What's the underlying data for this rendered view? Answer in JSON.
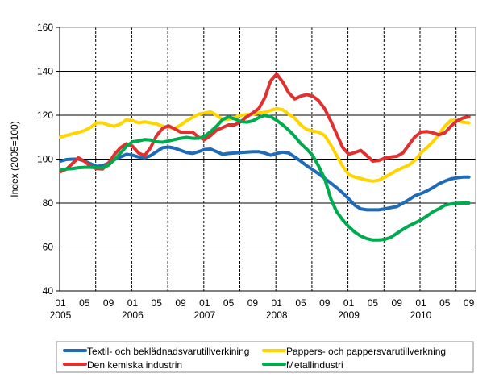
{
  "chart_data": {
    "type": "line",
    "title": "",
    "xlabel": "",
    "ylabel": "Index (2005=100)",
    "ylim": [
      40,
      160
    ],
    "yticks": [
      40,
      60,
      80,
      100,
      120,
      140,
      160
    ],
    "x_start": "2005-01",
    "x_end": "2010-09",
    "xtick_labels": [
      {
        "month": "01",
        "year": "2005",
        "date": "2005-01"
      },
      {
        "month": "05",
        "year": "",
        "date": "2005-05"
      },
      {
        "month": "09",
        "year": "",
        "date": "2005-09"
      },
      {
        "month": "01",
        "year": "2006",
        "date": "2006-01"
      },
      {
        "month": "05",
        "year": "",
        "date": "2006-05"
      },
      {
        "month": "09",
        "year": "",
        "date": "2006-09"
      },
      {
        "month": "01",
        "year": "2007",
        "date": "2007-01"
      },
      {
        "month": "05",
        "year": "",
        "date": "2007-05"
      },
      {
        "month": "09",
        "year": "",
        "date": "2007-09"
      },
      {
        "month": "01",
        "year": "2008",
        "date": "2008-01"
      },
      {
        "month": "05",
        "year": "",
        "date": "2008-05"
      },
      {
        "month": "09",
        "year": "",
        "date": "2008-09"
      },
      {
        "month": "01",
        "year": "2009",
        "date": "2009-01"
      },
      {
        "month": "05",
        "year": "",
        "date": "2009-05"
      },
      {
        "month": "09",
        "year": "",
        "date": "2009-09"
      },
      {
        "month": "01",
        "year": "2010",
        "date": "2010-01"
      },
      {
        "month": "05",
        "year": "",
        "date": "2010-05"
      },
      {
        "month": "09",
        "year": "",
        "date": "2010-09"
      }
    ],
    "grid": {
      "horizontal": "solid",
      "vertical": "dashed, January and July"
    },
    "legend_placement": "bottom",
    "series": [
      {
        "name": "Textil- och beklädnadsvarutillverkining",
        "color": "#1f6bb8",
        "values": [
          99.1,
          99.8,
          100,
          100,
          99.1,
          97.9,
          96.7,
          97,
          98.2,
          99.8,
          101,
          102.2,
          101.8,
          101,
          100.6,
          101.6,
          103.4,
          105.2,
          105.5,
          105,
          104,
          103,
          102.6,
          103.4,
          104.4,
          104.6,
          103.4,
          102.2,
          102.6,
          102.8,
          103,
          103.2,
          103.4,
          103.4,
          102.8,
          101.8,
          102.6,
          103.2,
          102.8,
          101,
          99.1,
          97,
          95.2,
          93.3,
          91.2,
          89.1,
          87,
          84.5,
          82,
          79,
          77.4,
          76.9,
          76.9,
          76.9,
          77.4,
          77.9,
          78.4,
          79.9,
          81.5,
          83.3,
          84.3,
          85.5,
          87,
          88.8,
          90,
          91,
          91.5,
          91.8,
          91.8
        ]
      },
      {
        "name": "Pappers- och pappersvarutillverkning",
        "color": "#ffd500",
        "values": [
          110,
          110.8,
          111.5,
          112.2,
          113,
          114.5,
          116.5,
          116.5,
          115.5,
          115,
          116,
          118,
          117.5,
          116.5,
          117,
          116.5,
          116,
          115,
          114.5,
          114,
          115.5,
          117.5,
          119,
          120.5,
          121,
          121.5,
          120,
          118,
          118,
          119,
          120,
          120.3,
          120.5,
          121,
          121.3,
          122.2,
          123,
          122.5,
          120.5,
          118.7,
          115.6,
          113.5,
          112.8,
          112.3,
          110.7,
          106.5,
          101.6,
          96.7,
          93,
          91.8,
          91.2,
          90.4,
          90,
          90.4,
          91.8,
          93.3,
          94.9,
          96.1,
          97.3,
          99.4,
          102.8,
          105.2,
          107.9,
          111.3,
          115,
          117.7,
          117.7,
          116.8,
          116.5
        ]
      },
      {
        "name": "Den kemiska industrin",
        "color": "#e03030",
        "values": [
          94.3,
          95.5,
          98,
          100.6,
          99,
          96.7,
          95.7,
          95.5,
          98.2,
          102.2,
          105.2,
          107,
          105.9,
          102.8,
          101.6,
          105.2,
          110.7,
          114,
          115.2,
          113.8,
          112.3,
          112.3,
          112.3,
          110,
          108.9,
          110.7,
          113.2,
          114.4,
          115.6,
          115.6,
          117,
          119.3,
          121,
          123,
          127.8,
          135.7,
          138.8,
          135.1,
          130.2,
          127.4,
          128.7,
          129.4,
          128.7,
          126.6,
          122.9,
          117.4,
          111.3,
          105.2,
          102.2,
          103,
          104,
          101.6,
          99.1,
          99.4,
          100.4,
          101,
          101.3,
          102.8,
          106.5,
          110.1,
          112.3,
          112.6,
          112,
          111.1,
          112,
          115,
          117.4,
          118.7,
          119.3
        ]
      },
      {
        "name": "Metallindustri",
        "color": "#00aa4f",
        "values": [
          95.2,
          95.5,
          95.7,
          96.1,
          96.3,
          96.3,
          96.1,
          96,
          97.3,
          99.8,
          102.8,
          105.9,
          107.9,
          108.3,
          108.9,
          108.7,
          107.9,
          107.7,
          108.3,
          108.9,
          109.5,
          109.9,
          109.5,
          109.5,
          110.4,
          112.6,
          115,
          118,
          119.3,
          118.3,
          117.2,
          116.8,
          117.4,
          118.9,
          119.9,
          119.3,
          117.7,
          115.6,
          113.2,
          110.4,
          107.1,
          104.6,
          101.6,
          96.7,
          91,
          82,
          76,
          72.3,
          69.3,
          66.8,
          65,
          63.8,
          63.2,
          63.2,
          63.5,
          64.4,
          66.2,
          68,
          69.6,
          70.9,
          72.3,
          74.1,
          76,
          77.4,
          79,
          79.6,
          79.9,
          80,
          80
        ]
      }
    ]
  }
}
